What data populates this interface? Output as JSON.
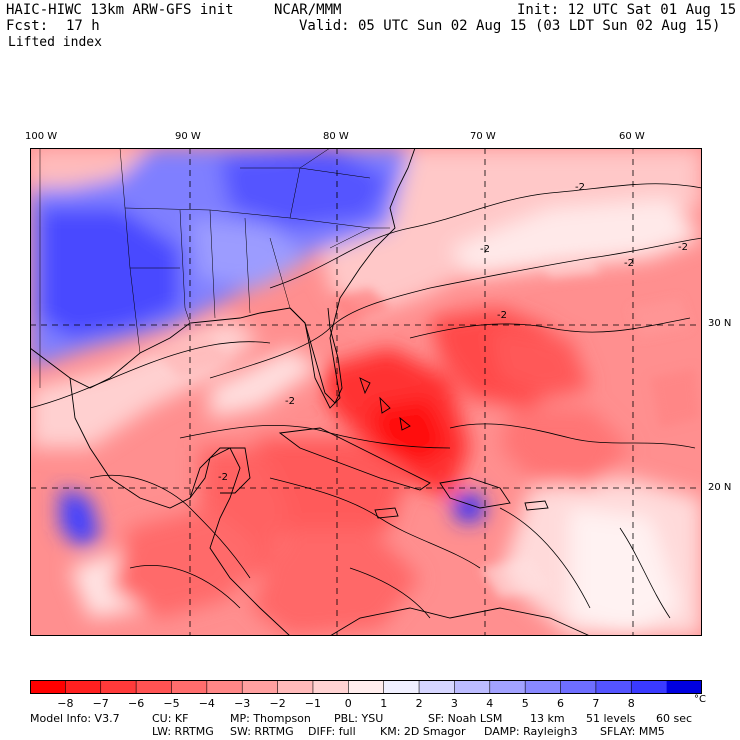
{
  "header": {
    "model_title": "HAIC-HIWC 13km ARW-GFS init",
    "center": "NCAR/MMM",
    "init": "Init: 12 UTC Sat 01 Aug 15",
    "forecast_label": "Fcst:",
    "forecast_value": "17 h",
    "valid": "Valid: 05 UTC Sun 02 Aug 15 (03 LDT Sun 02 Aug 15)",
    "field": "Lifted index"
  },
  "map": {
    "lon_labels": [
      "100 W",
      "90 W",
      "80 W",
      "70 W",
      "60 W"
    ],
    "lat_labels": [
      "30 N",
      "20 N"
    ],
    "contour_label": "-2",
    "colors": {
      "strong_negative": "#ff1a1a",
      "negative": "#ff6b6b",
      "weak_negative": "#ffb3b3",
      "near_zero": "#fff0f0",
      "positive": "#8a8aff",
      "strong_positive": "#2a2aff"
    }
  },
  "colorbar": {
    "ticks": [
      "−8",
      "−7",
      "−6",
      "−5",
      "−4",
      "−3",
      "−2",
      "−1",
      "0",
      "1",
      "2",
      "3",
      "4",
      "5",
      "6",
      "7",
      "8"
    ],
    "unit": "°C",
    "colors": [
      "#ff0000",
      "#ff2020",
      "#ff3a3a",
      "#ff5353",
      "#ff6d6d",
      "#ff8787",
      "#ffa0a0",
      "#ffbaba",
      "#ffd3d3",
      "#ffeded",
      "#f0f0ff",
      "#d6d6ff",
      "#bcbcff",
      "#a2a2ff",
      "#8888ff",
      "#6e6eff",
      "#5454ff",
      "#3a3aff",
      "#0000e0"
    ]
  },
  "footer": {
    "line1": [
      "Model Info: V3.7",
      "CU: KF",
      "MP: Thompson",
      "PBL: YSU",
      "SF: Noah LSM",
      "13 km",
      "51 levels",
      "60 sec"
    ],
    "line2": [
      "LW: RRTMG",
      "SW: RRTMG",
      "DIFF: full",
      "KM: 2D Smagor",
      "DAMP: Rayleigh3",
      "SFLAY: MM5"
    ]
  }
}
